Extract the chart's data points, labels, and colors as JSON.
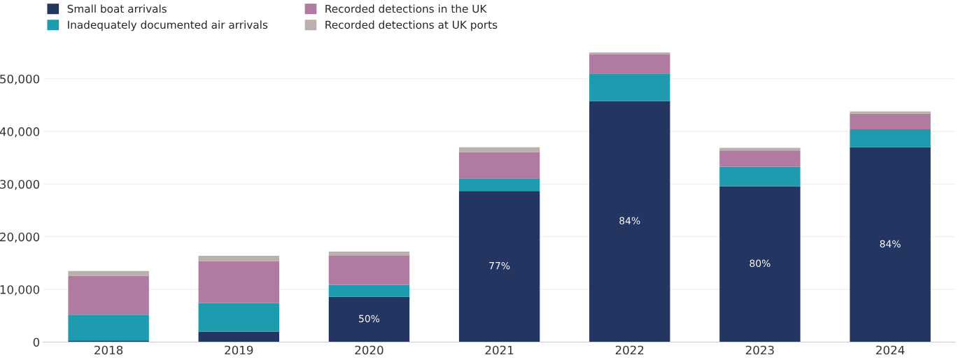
{
  "chart_data": {
    "type": "bar",
    "stacked": true,
    "categories": [
      "2018",
      "2019",
      "2020",
      "2021",
      "2022",
      "2023",
      "2024"
    ],
    "series": [
      {
        "name": "Small boat arrivals",
        "color": "#253561",
        "values": [
          300,
          2000,
          8600,
          28700,
          45800,
          29600,
          37000
        ]
      },
      {
        "name": "Inadequately documented air arrivals",
        "color": "#1f9bb0",
        "values": [
          4900,
          5400,
          2300,
          2400,
          5200,
          3700,
          3400
        ]
      },
      {
        "name": "Recorded detections in the UK",
        "color": "#b07aa1",
        "values": [
          7400,
          8000,
          5500,
          5000,
          3600,
          3100,
          3000
        ]
      },
      {
        "name": "Recorded detections at UK ports",
        "color": "#bab0ac",
        "values": [
          900,
          1000,
          800,
          900,
          400,
          500,
          400
        ]
      }
    ],
    "annotations": [
      "50%",
      "77%",
      "84%",
      "80%",
      "84%"
    ],
    "ylim": [
      0,
      55000
    ],
    "yticks": [
      0,
      {
        "value": 10000,
        "label": "10,000"
      },
      {
        "value": 20000,
        "label": "20,000"
      },
      {
        "value": 30000,
        "label": "30,000"
      },
      {
        "value": 40000,
        "label": "40,000"
      },
      {
        "value": 50000,
        "label": "50,000"
      }
    ],
    "grid": "y",
    "legend": "top left"
  }
}
